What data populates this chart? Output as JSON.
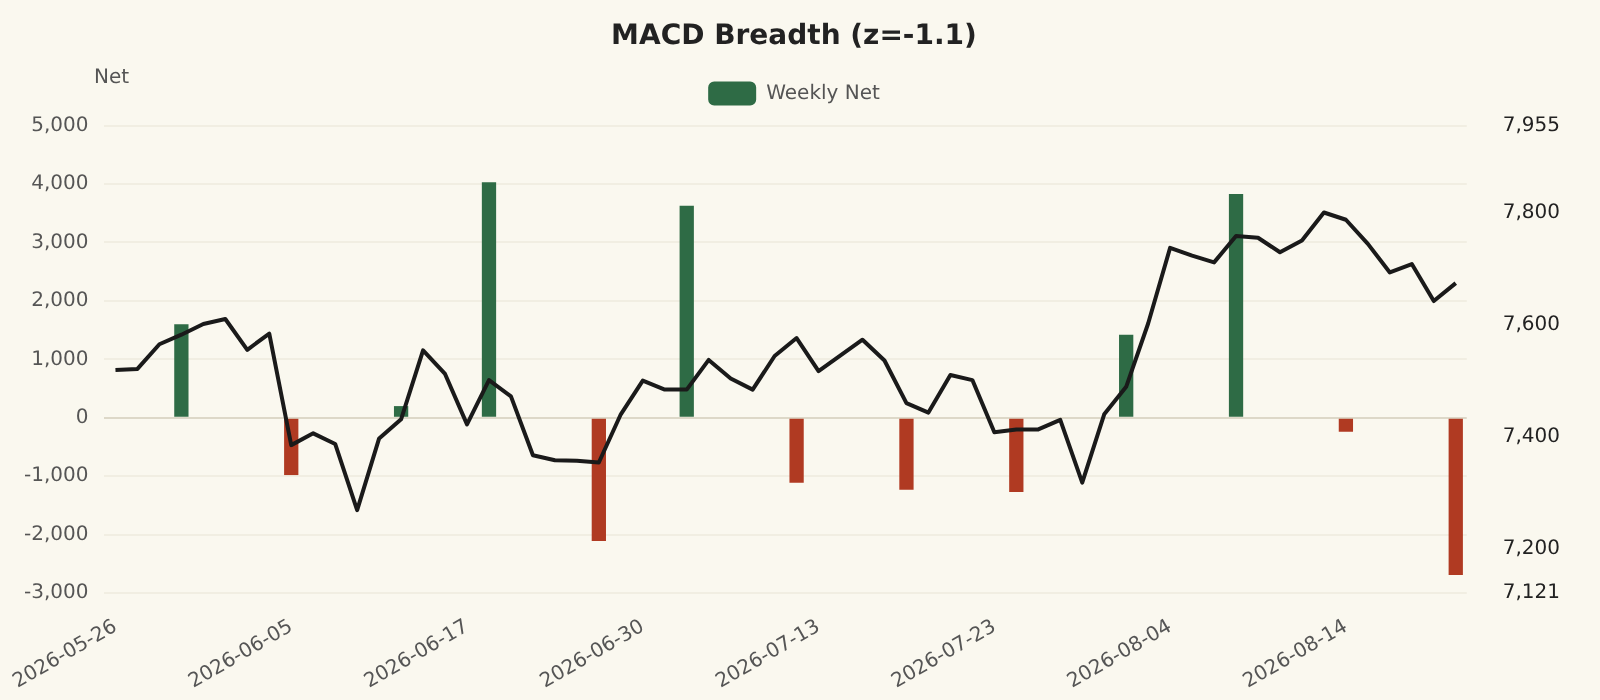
{
  "chart_data": {
    "type": "bar",
    "title": "MACD Breadth (z=-1.1)",
    "ylabel": "Net",
    "categories": [
      "2026-05-26",
      null,
      null,
      null,
      null,
      null,
      null,
      null,
      "2026-06-05",
      null,
      null,
      null,
      null,
      null,
      null,
      null,
      "2026-06-17",
      null,
      null,
      null,
      null,
      null,
      null,
      null,
      "2026-06-30",
      null,
      null,
      null,
      null,
      null,
      null,
      null,
      "2026-07-13",
      null,
      null,
      null,
      null,
      null,
      null,
      null,
      "2026-07-23",
      null,
      null,
      null,
      null,
      null,
      null,
      null,
      "2026-08-04",
      null,
      null,
      null,
      null,
      null,
      null,
      null,
      "2026-08-14",
      null,
      null,
      null,
      null,
      null
    ],
    "series": [
      {
        "name": "Weekly Net",
        "color": "#2e6b45",
        "values": [
          null,
          null,
          null,
          1600,
          null,
          null,
          null,
          null,
          -980,
          null,
          null,
          null,
          null,
          200,
          null,
          null,
          null,
          4030,
          null,
          null,
          null,
          null,
          -2110,
          null,
          null,
          null,
          3630,
          null,
          null,
          null,
          null,
          -1110,
          null,
          null,
          null,
          null,
          -1230,
          null,
          null,
          null,
          null,
          -1270,
          null,
          null,
          null,
          null,
          1420,
          null,
          null,
          null,
          null,
          3830,
          null,
          null,
          null,
          null,
          -240,
          null,
          null,
          null,
          null,
          -2690
        ],
        "colors": [
          null,
          null,
          null,
          "#2e6b45",
          null,
          null,
          null,
          null,
          "#b03a22",
          null,
          null,
          null,
          null,
          "#2e6b45",
          null,
          null,
          null,
          "#2e6b45",
          null,
          null,
          null,
          null,
          "#b03a22",
          null,
          null,
          null,
          "#2e6b45",
          null,
          null,
          null,
          null,
          "#b03a22",
          null,
          null,
          null,
          null,
          "#b03a22",
          null,
          null,
          null,
          null,
          "#b03a22",
          null,
          null,
          null,
          null,
          "#2e6b45",
          null,
          null,
          null,
          null,
          "#2e6b45",
          null,
          null,
          null,
          null,
          "#b03a22",
          null,
          null,
          null,
          null,
          "#b03a22"
        ]
      },
      {
        "type": "line",
        "axis": "y2",
        "color": "#1a1a1a",
        "values": [
          7519,
          7521,
          7565,
          7582,
          7601,
          7610,
          7555,
          7584,
          7385,
          7406,
          7387,
          7269,
          7397,
          7431,
          7554,
          7512,
          7422,
          7501,
          7472,
          7367,
          7358,
          7357,
          7354,
          7440,
          7500,
          7484,
          7484,
          7537,
          7504,
          7484,
          7544,
          7576,
          7517,
          7545,
          7573,
          7536,
          7460,
          7443,
          7510,
          7501,
          7408,
          7413,
          7413,
          7430,
          7318,
          7440,
          7489,
          7602,
          7737,
          7723,
          7711,
          7758,
          7755,
          7729,
          7750,
          7800,
          7787,
          7744,
          7693,
          7708,
          7642,
          7674
        ]
      }
    ],
    "ylim": [
      -3000,
      5000
    ],
    "yticks": [
      {
        "value": -3000,
        "label": "-3,000"
      },
      {
        "value": -2000,
        "label": "-2,000"
      },
      {
        "value": -1000,
        "label": "-1,000"
      },
      0,
      {
        "value": 1000,
        "label": "1,000"
      },
      {
        "value": 2000,
        "label": "2,000"
      },
      {
        "value": 3000,
        "label": "3,000"
      },
      {
        "value": 4000,
        "label": "4,000"
      },
      {
        "value": 5000,
        "label": "5,000"
      }
    ],
    "y2lim": [
      7121,
      7955
    ],
    "y2ticks": [
      {
        "value": 7121,
        "label": "7,121"
      },
      {
        "value": 7200,
        "label": "7,200"
      },
      {
        "value": 7400,
        "label": "7,400"
      },
      {
        "value": 7600,
        "label": "7,600"
      },
      {
        "value": 7800,
        "label": "7,800"
      },
      {
        "value": 7955,
        "label": "7,955"
      }
    ],
    "grid": "y",
    "legend": "top"
  }
}
